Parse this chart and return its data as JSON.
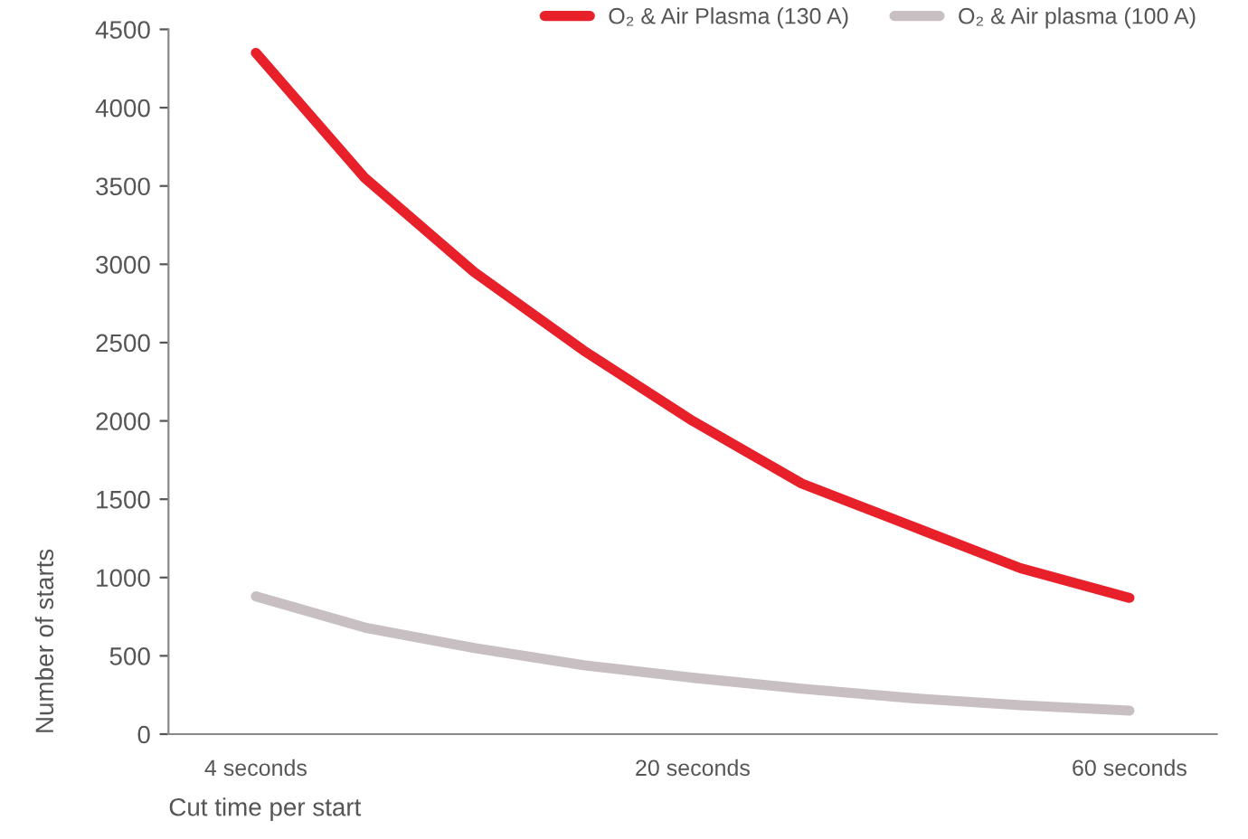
{
  "chart_data": {
    "type": "line",
    "xlabel": "Cut time per start",
    "ylabel": "Number of starts",
    "categories": [
      "4 seconds",
      null,
      null,
      null,
      "20 seconds",
      null,
      null,
      null,
      "60 seconds"
    ],
    "series": [
      {
        "name": "O₂ & Air Plasma (130 A)",
        "color": "#e8202a",
        "values": [
          4350,
          3550,
          2950,
          2450,
          2000,
          1600,
          1330,
          1060,
          870
        ]
      },
      {
        "name": "O₂ & Air plasma (100 A)",
        "color": "#c8bfc3",
        "values": [
          880,
          680,
          550,
          440,
          360,
          290,
          230,
          185,
          150
        ]
      }
    ],
    "ylim": [
      0,
      4500
    ],
    "yticks": [
      0,
      500,
      1000,
      1500,
      2000,
      2500,
      3000,
      3500,
      4000,
      4500
    ],
    "grid": false,
    "legend": "top right",
    "marker": "none",
    "line_style": "solid"
  }
}
